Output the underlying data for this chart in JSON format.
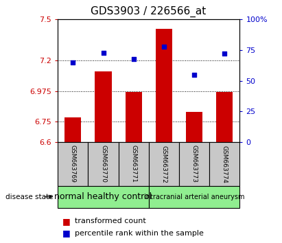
{
  "title": "GDS3903 / 226566_at",
  "samples": [
    "GSM663769",
    "GSM663770",
    "GSM663771",
    "GSM663772",
    "GSM663773",
    "GSM663774"
  ],
  "bar_values": [
    6.78,
    7.12,
    6.97,
    7.43,
    6.82,
    6.97
  ],
  "percentile_values": [
    65,
    73,
    68,
    78,
    55,
    72
  ],
  "ylim_left": [
    6.6,
    7.5
  ],
  "ylim_right": [
    0,
    100
  ],
  "yticks_left": [
    6.6,
    6.75,
    6.975,
    7.2,
    7.5
  ],
  "ytick_labels_left": [
    "6.6",
    "6.75",
    "6.975",
    "7.2",
    "7.5"
  ],
  "yticks_right": [
    0,
    25,
    50,
    75,
    100
  ],
  "ytick_labels_right": [
    "0",
    "25",
    "50",
    "75",
    "100%"
  ],
  "bar_color": "#CC0000",
  "point_color": "#0000CC",
  "bar_width": 0.55,
  "grid_lines": [
    6.75,
    6.975,
    7.2
  ],
  "groups": [
    {
      "label": "normal healthy control",
      "start": 0,
      "end": 2,
      "color": "#90EE90"
    },
    {
      "label": "intracranial arterial aneurysm",
      "start": 3,
      "end": 5,
      "color": "#90EE90"
    }
  ],
  "legend_bar_label": "transformed count",
  "legend_point_label": "percentile rank within the sample",
  "disease_state_label": "disease state",
  "left_axis_color": "#CC0000",
  "right_axis_color": "#0000CC",
  "title_fontsize": 11,
  "tick_fontsize": 8,
  "sample_fontsize": 6.5,
  "group_fontsize_large": 9,
  "group_fontsize_small": 7,
  "legend_fontsize": 8,
  "gray_color": "#C8C8C8"
}
